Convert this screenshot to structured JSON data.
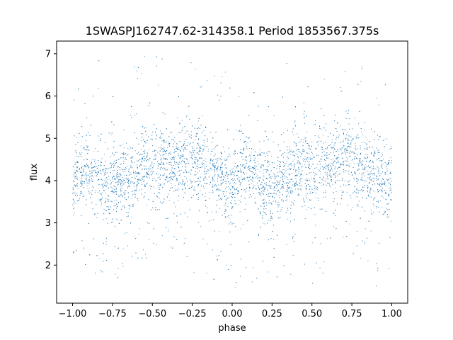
{
  "chart_data": {
    "type": "scatter",
    "title": "1SWASPJ162747.62-314358.1 Period 1853567.375s",
    "xlabel": "phase",
    "ylabel": "flux",
    "xlim": [
      -1.1,
      1.1
    ],
    "ylim": [
      1.1,
      7.3
    ],
    "x_ticks": [
      -1.0,
      -0.75,
      -0.5,
      -0.25,
      0.0,
      0.25,
      0.5,
      0.75,
      1.0
    ],
    "x_tick_labels": [
      "−1.00",
      "−0.75",
      "−0.50",
      "−0.25",
      "0.00",
      "0.25",
      "0.50",
      "0.75",
      "1.00"
    ],
    "y_ticks": [
      2,
      3,
      4,
      5,
      6,
      7
    ],
    "y_tick_labels": [
      "2",
      "3",
      "4",
      "5",
      "6",
      "7"
    ],
    "grid": false,
    "point_color": "#1f77b4",
    "series": [
      {
        "phase_profile": [
          {
            "x": -1.0,
            "y": 3.9
          },
          {
            "x": -0.95,
            "y": 4.2
          },
          {
            "x": -0.9,
            "y": 4.3
          },
          {
            "x": -0.85,
            "y": 4.1
          },
          {
            "x": -0.8,
            "y": 3.9
          },
          {
            "x": -0.75,
            "y": 3.9
          },
          {
            "x": -0.7,
            "y": 4.0
          },
          {
            "x": -0.65,
            "y": 4.1
          },
          {
            "x": -0.6,
            "y": 4.2
          },
          {
            "x": -0.55,
            "y": 4.5
          },
          {
            "x": -0.5,
            "y": 4.2
          },
          {
            "x": -0.45,
            "y": 4.4
          },
          {
            "x": -0.4,
            "y": 4.3
          },
          {
            "x": -0.35,
            "y": 4.4
          },
          {
            "x": -0.3,
            "y": 4.5
          },
          {
            "x": -0.25,
            "y": 4.5
          },
          {
            "x": -0.2,
            "y": 4.4
          },
          {
            "x": -0.15,
            "y": 4.2
          },
          {
            "x": -0.1,
            "y": 4.1
          },
          {
            "x": -0.05,
            "y": 4.0
          },
          {
            "x": 0.0,
            "y": 3.9
          },
          {
            "x": 0.05,
            "y": 4.2
          },
          {
            "x": 0.1,
            "y": 4.3
          },
          {
            "x": 0.15,
            "y": 4.1
          },
          {
            "x": 0.2,
            "y": 3.9
          },
          {
            "x": 0.25,
            "y": 3.9
          },
          {
            "x": 0.3,
            "y": 4.0
          },
          {
            "x": 0.35,
            "y": 4.1
          },
          {
            "x": 0.4,
            "y": 4.2
          },
          {
            "x": 0.45,
            "y": 4.5
          },
          {
            "x": 0.5,
            "y": 4.2
          },
          {
            "x": 0.55,
            "y": 4.4
          },
          {
            "x": 0.6,
            "y": 4.3
          },
          {
            "x": 0.65,
            "y": 4.4
          },
          {
            "x": 0.7,
            "y": 4.5
          },
          {
            "x": 0.75,
            "y": 4.5
          },
          {
            "x": 0.8,
            "y": 4.4
          },
          {
            "x": 0.85,
            "y": 4.2
          },
          {
            "x": 0.9,
            "y": 4.1
          },
          {
            "x": 0.95,
            "y": 4.0
          },
          {
            "x": 1.0,
            "y": 3.9
          }
        ],
        "typical_scatter": 0.45,
        "x_range": [
          -1.0,
          1.0
        ],
        "y_range": [
          1.4,
          7.0
        ]
      }
    ]
  }
}
